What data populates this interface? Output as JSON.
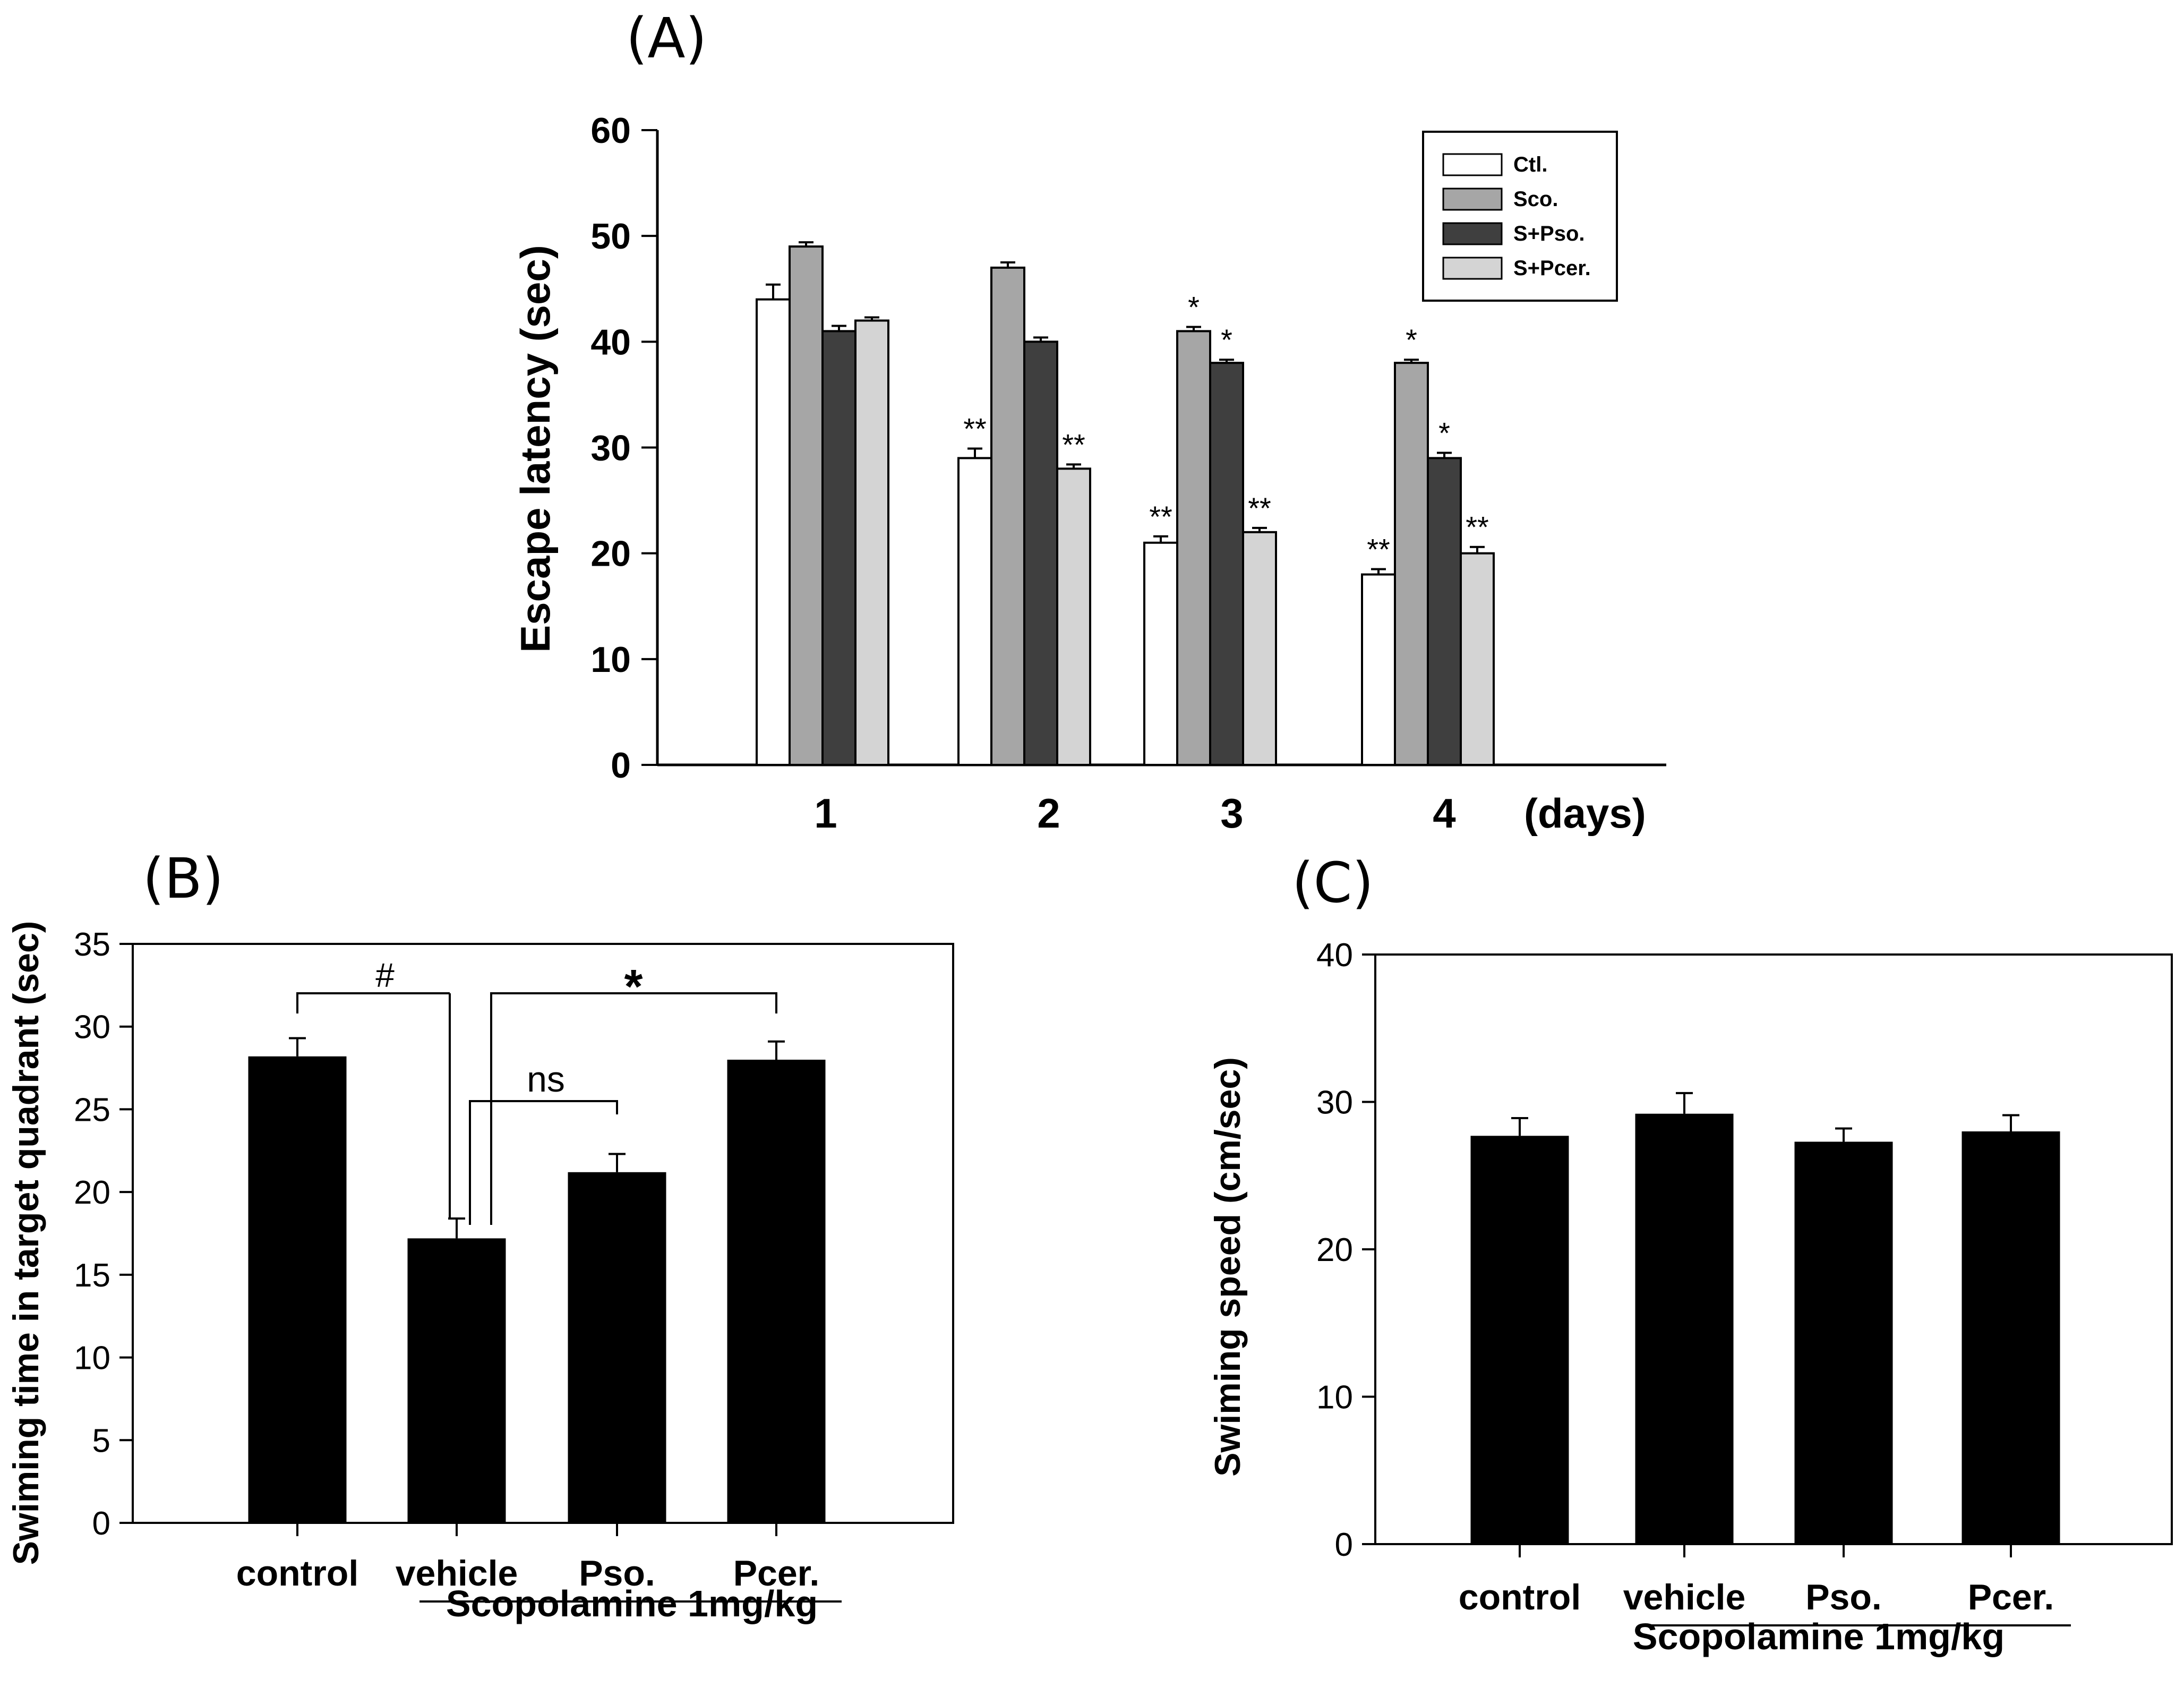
{
  "panels": {
    "A": "(A)",
    "B": "(B)",
    "C": "(C)"
  },
  "colors": {
    "ctl": "#ffffff",
    "sco": "#a6a6a6",
    "pso": "#3f3f3f",
    "pcer": "#d4d4d4",
    "black_bar": "#000000"
  },
  "chart_data": [
    {
      "id": "A",
      "type": "bar",
      "title": "(A)",
      "xlabel": "(days)",
      "ylabel": "Escape latency (sec)",
      "ylim": [
        0,
        60
      ],
      "yticks": [
        0,
        10,
        20,
        30,
        40,
        50,
        60
      ],
      "categories": [
        "1",
        "2",
        "3",
        "4"
      ],
      "legend_position": "top-right",
      "series": [
        {
          "name": "Ctl.",
          "values": [
            44,
            29,
            21,
            18
          ],
          "errors": [
            1.4,
            0.9,
            0.6,
            0.5
          ],
          "annotations": [
            "",
            "**",
            "**",
            "**"
          ]
        },
        {
          "name": "Sco.",
          "values": [
            49,
            47,
            41,
            38
          ],
          "errors": [
            0.4,
            0.5,
            0.4,
            0.3
          ],
          "annotations": [
            "",
            "",
            "*",
            "*"
          ]
        },
        {
          "name": "S+Pso.",
          "values": [
            41,
            40,
            38,
            29
          ],
          "errors": [
            0.5,
            0.4,
            0.3,
            0.5
          ],
          "annotations": [
            "",
            "",
            "*",
            "*"
          ]
        },
        {
          "name": "S+Pcer.",
          "values": [
            42,
            28,
            22,
            20
          ],
          "errors": [
            0.3,
            0.4,
            0.4,
            0.6
          ],
          "annotations": [
            "",
            "**",
            "**",
            "**"
          ]
        }
      ]
    },
    {
      "id": "B",
      "type": "bar",
      "title": "(B)",
      "xlabel": "Scopolamine 1mg/kg",
      "ylabel": "Swiming time in target quadrant (sec)",
      "ylim": [
        0,
        35
      ],
      "yticks": [
        0,
        5,
        10,
        15,
        20,
        25,
        30,
        35
      ],
      "categories": [
        "control",
        "vehicle",
        "Pso.",
        "Pcer."
      ],
      "values": [
        28.2,
        17.2,
        21.2,
        28.0
      ],
      "errors": [
        1.1,
        1.2,
        1.1,
        1.1
      ],
      "significance": [
        {
          "from": "control",
          "to": "vehicle",
          "label": "#"
        },
        {
          "from": "vehicle",
          "to": "Pso.",
          "label": "ns"
        },
        {
          "from": "vehicle",
          "to": "Pcer.",
          "label": "*"
        }
      ]
    },
    {
      "id": "C",
      "type": "bar",
      "title": "(C)",
      "xlabel": "Scopolamine 1mg/kg",
      "ylabel": "Swiming speed (cm/sec)",
      "ylim": [
        0,
        40
      ],
      "yticks": [
        0,
        10,
        20,
        30,
        40
      ],
      "categories": [
        "control",
        "vehicle",
        "Pso.",
        "Pcer."
      ],
      "values": [
        27.7,
        29.2,
        27.3,
        28.0
      ],
      "errors": [
        1.2,
        1.4,
        0.9,
        1.1
      ]
    }
  ]
}
